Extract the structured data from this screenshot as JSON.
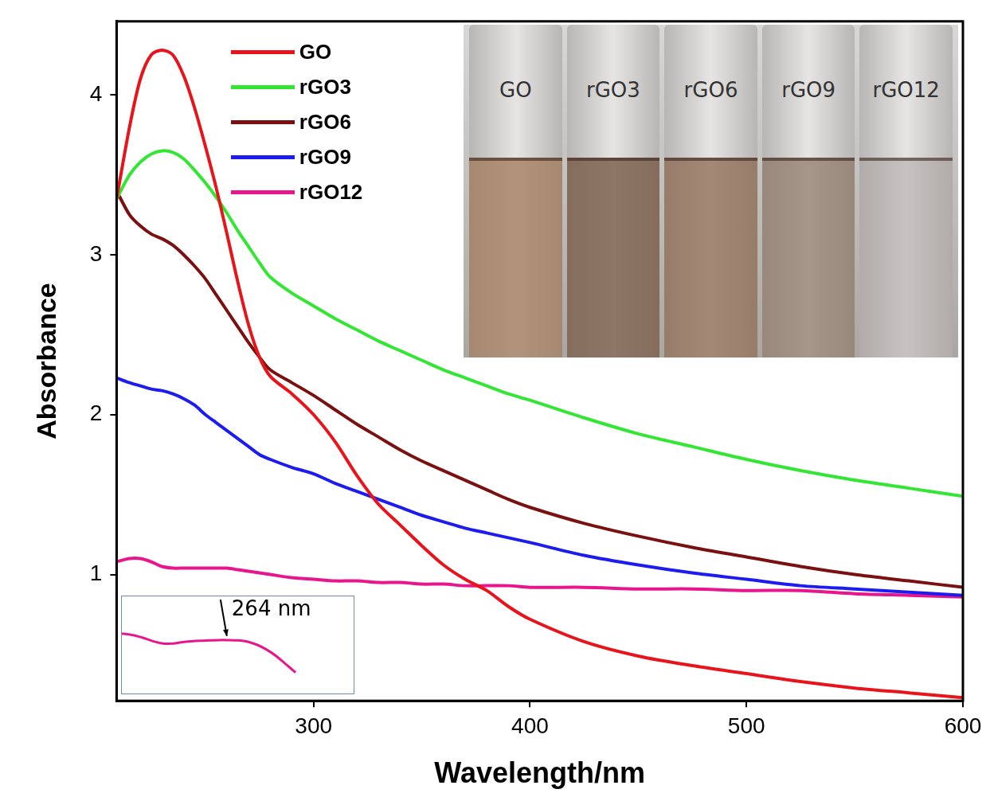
{
  "chart_data": [
    {
      "type": "line",
      "x_label": "Wavelength/nm",
      "y_label": "Absorbance",
      "x": [
        209,
        215,
        220,
        225,
        230,
        235,
        240,
        245,
        250,
        255,
        260,
        265,
        270,
        275,
        280,
        290,
        300,
        310,
        320,
        330,
        340,
        350,
        360,
        370,
        380,
        390,
        400,
        425,
        450,
        475,
        500,
        525,
        550,
        575,
        600
      ],
      "series": [
        {
          "name": "GO",
          "color": "#e8141b",
          "values": [
            3.35,
            3.8,
            4.1,
            4.25,
            4.28,
            4.25,
            4.12,
            3.92,
            3.68,
            3.42,
            3.13,
            2.83,
            2.56,
            2.36,
            2.24,
            2.13,
            2.0,
            1.83,
            1.62,
            1.44,
            1.31,
            1.18,
            1.06,
            0.97,
            0.9,
            0.8,
            0.72,
            0.58,
            0.49,
            0.43,
            0.38,
            0.33,
            0.29,
            0.26,
            0.23
          ]
        },
        {
          "name": "rGO3",
          "color": "#33e633",
          "values": [
            3.35,
            3.5,
            3.58,
            3.63,
            3.65,
            3.64,
            3.6,
            3.53,
            3.45,
            3.36,
            3.26,
            3.15,
            3.05,
            2.95,
            2.86,
            2.76,
            2.68,
            2.6,
            2.53,
            2.46,
            2.4,
            2.34,
            2.28,
            2.23,
            2.18,
            2.13,
            2.09,
            1.98,
            1.88,
            1.8,
            1.72,
            1.65,
            1.59,
            1.54,
            1.49
          ]
        },
        {
          "name": "rGO6",
          "color": "#7b1010",
          "values": [
            3.4,
            3.25,
            3.18,
            3.13,
            3.1,
            3.06,
            3.0,
            2.93,
            2.85,
            2.75,
            2.65,
            2.55,
            2.45,
            2.36,
            2.28,
            2.2,
            2.12,
            2.03,
            1.94,
            1.86,
            1.78,
            1.71,
            1.65,
            1.59,
            1.53,
            1.47,
            1.42,
            1.32,
            1.24,
            1.17,
            1.11,
            1.05,
            1.0,
            0.96,
            0.92
          ]
        },
        {
          "name": "rGO9",
          "color": "#1c1cf0",
          "values": [
            2.23,
            2.2,
            2.18,
            2.16,
            2.15,
            2.13,
            2.1,
            2.06,
            2.0,
            1.95,
            1.9,
            1.85,
            1.8,
            1.75,
            1.72,
            1.67,
            1.63,
            1.57,
            1.52,
            1.47,
            1.42,
            1.37,
            1.33,
            1.29,
            1.26,
            1.23,
            1.2,
            1.12,
            1.06,
            1.01,
            0.97,
            0.93,
            0.91,
            0.89,
            0.87
          ]
        },
        {
          "name": "rGO12",
          "color": "#e8168c",
          "values": [
            1.08,
            1.1,
            1.1,
            1.08,
            1.05,
            1.04,
            1.04,
            1.04,
            1.04,
            1.04,
            1.04,
            1.03,
            1.02,
            1.01,
            1.0,
            0.98,
            0.97,
            0.96,
            0.96,
            0.95,
            0.95,
            0.94,
            0.94,
            0.93,
            0.93,
            0.93,
            0.92,
            0.92,
            0.91,
            0.91,
            0.9,
            0.9,
            0.88,
            0.87,
            0.86
          ]
        }
      ],
      "xlim": [
        209,
        600
      ],
      "xticks": [
        300,
        400,
        500,
        600
      ],
      "ylim": [
        0.21,
        4.46
      ],
      "yticks": [
        1,
        2,
        3,
        4
      ],
      "grid": false,
      "legend": "upper left"
    },
    {
      "type": "line",
      "x": [
        209,
        215,
        220,
        225,
        230,
        235,
        240,
        245,
        250,
        255,
        260,
        264,
        270,
        275,
        280,
        285,
        290,
        295,
        300
      ],
      "series": [
        {
          "name": "rGO12",
          "color": "#e8168c",
          "values": [
            1.085,
            1.08,
            1.072,
            1.062,
            1.055,
            1.054,
            1.058,
            1.061,
            1.063,
            1.064,
            1.065,
            1.065,
            1.064,
            1.06,
            1.05,
            1.035,
            1.015,
            0.99,
            0.965
          ]
        }
      ],
      "xlim": [
        209,
        330
      ],
      "ylim": [
        0.9,
        1.2
      ],
      "tick_labels": false,
      "grid": false,
      "annotations": [
        {
          "text": "264 nm",
          "x": 264
        }
      ]
    }
  ],
  "photo": {
    "labels": [
      "GO",
      "rGO3",
      "rGO6",
      "rGO9",
      "rGO12"
    ]
  }
}
